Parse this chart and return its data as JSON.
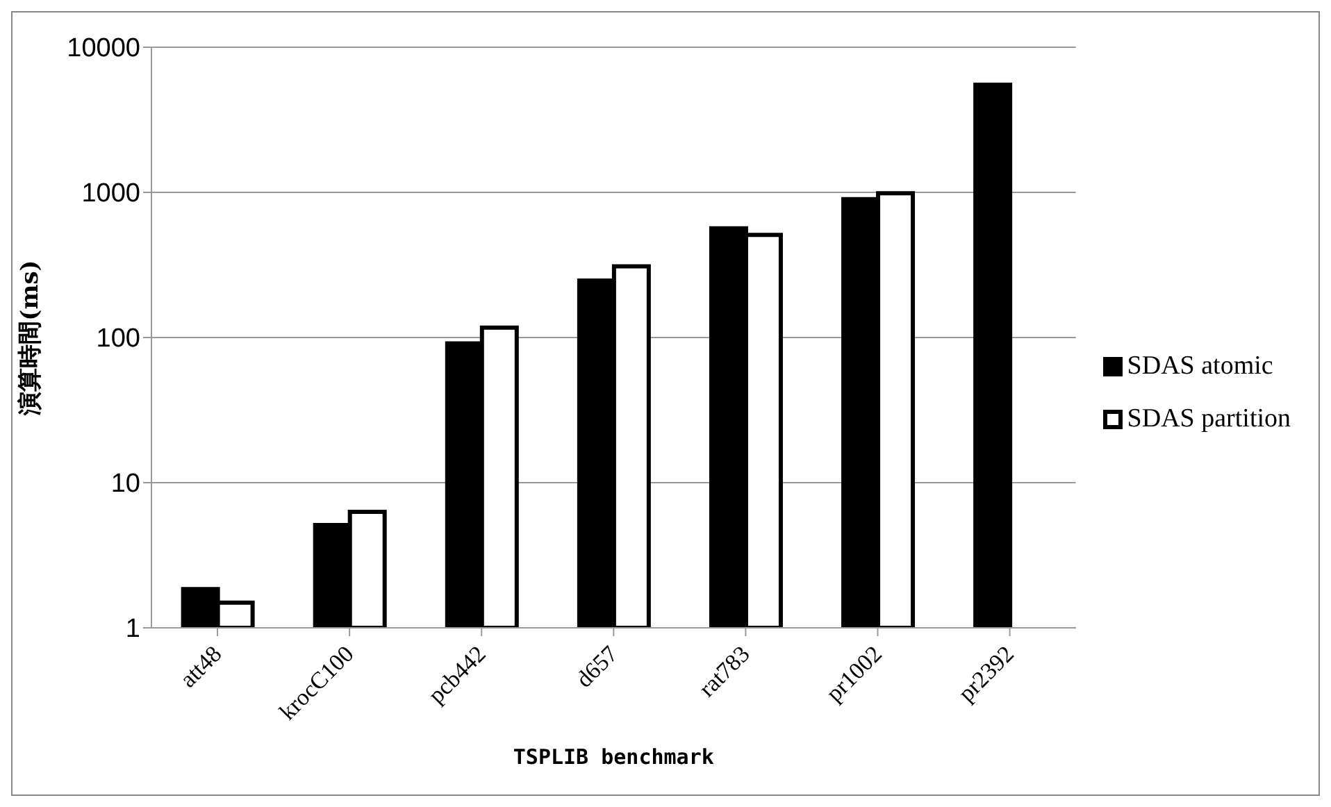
{
  "chart_data": {
    "type": "bar",
    "xlabel": "TSPLIB benchmark",
    "ylabel": "演算時間(ms)",
    "categories": [
      "att48",
      "krocC100",
      "pcb442",
      "d657",
      "rat783",
      "pr1002",
      "pr2392"
    ],
    "series": [
      {
        "name": "SDAS atomic",
        "color": "#000000",
        "values": [
          1.85,
          5.1,
          91,
          247,
          565,
          898,
          5520
        ]
      },
      {
        "name": "SDAS partition",
        "color": "#ffffff",
        "values": [
          1.49,
          6.3,
          117,
          309,
          509,
          987,
          null
        ]
      }
    ],
    "log": true,
    "ylim": [
      1,
      10000
    ],
    "yticks": [
      1,
      10,
      100,
      1000,
      10000
    ],
    "grid": "y",
    "legend": "right"
  }
}
